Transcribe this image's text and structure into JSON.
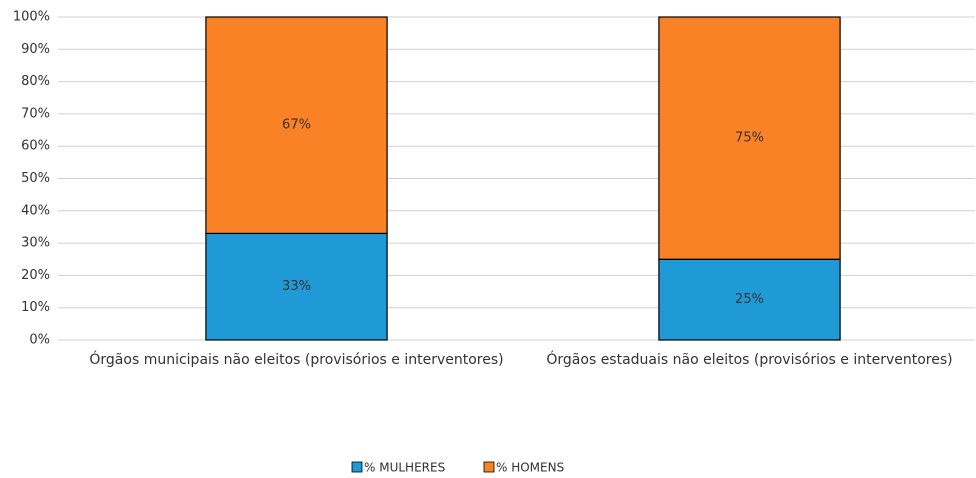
{
  "chart_data": {
    "type": "stacked_bar",
    "categories": [
      "Órgãos municipais não eleitos (provisórios e interventores)",
      "Órgãos estaduais não eleitos (provisórios e interventores)"
    ],
    "series": [
      {
        "name": "% MULHERES",
        "color": "#1f9ad6",
        "values": [
          33,
          25
        ],
        "value_labels": [
          "33%",
          "25%"
        ]
      },
      {
        "name": "% HOMENS",
        "color": "#f98126",
        "values": [
          67,
          75
        ],
        "value_labels": [
          "67%",
          "75%"
        ]
      }
    ],
    "ylim": [
      0,
      100
    ],
    "yticks": [
      {
        "value": 0,
        "label": "0%"
      },
      {
        "value": 10,
        "label": "10%"
      },
      {
        "value": 20,
        "label": "20%"
      },
      {
        "value": 30,
        "label": "30%"
      },
      {
        "value": 40,
        "label": "40%"
      },
      {
        "value": 50,
        "label": "50%"
      },
      {
        "value": 60,
        "label": "60%"
      },
      {
        "value": 70,
        "label": "70%"
      },
      {
        "value": 80,
        "label": "80%"
      },
      {
        "value": 90,
        "label": "90%"
      },
      {
        "value": 100,
        "label": "100%"
      }
    ],
    "grid": true,
    "legend": "bottom"
  }
}
